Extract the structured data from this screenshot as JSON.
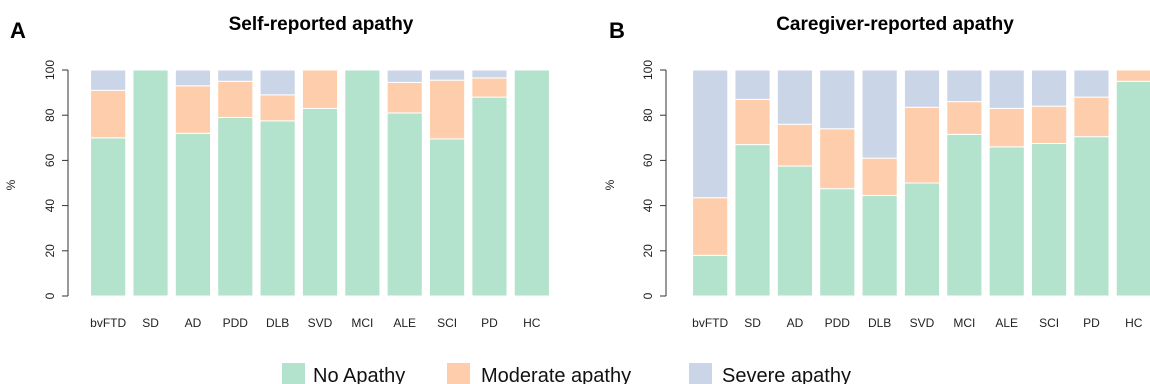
{
  "colors": {
    "no": "#b3e2cd",
    "mod": "#fdcdac",
    "sev": "#cbd5e8"
  },
  "legend": [
    {
      "label": "No Apathy",
      "color": "#b3e2cd"
    },
    {
      "label": "Moderate apathy",
      "color": "#fdcdac"
    },
    {
      "label": "Severe apathy",
      "color": "#cbd5e8"
    }
  ],
  "chart_data": [
    {
      "type": "bar",
      "stacked": true,
      "panel": "A",
      "title": "Self-reported apathy",
      "ylabel": "%",
      "ylim": [
        0,
        100
      ],
      "yticks": [
        0,
        20,
        40,
        60,
        80,
        100
      ],
      "categories": [
        "bvFTD",
        "SD",
        "AD",
        "PDD",
        "DLB",
        "SVD",
        "MCI",
        "ALE",
        "SCI",
        "PD",
        "HC"
      ],
      "series": [
        {
          "name": "No Apathy",
          "values": [
            70,
            100,
            72,
            79,
            77.5,
            83,
            100,
            81,
            69.5,
            88,
            100
          ]
        },
        {
          "name": "Moderate apathy",
          "values": [
            21,
            0,
            21,
            16,
            11.5,
            17,
            0,
            13.5,
            26,
            8.5,
            0
          ]
        },
        {
          "name": "Severe apathy",
          "values": [
            9,
            0,
            7,
            5,
            11,
            0,
            0,
            5.5,
            4.5,
            3.5,
            0
          ]
        }
      ]
    },
    {
      "type": "bar",
      "stacked": true,
      "panel": "B",
      "title": "Caregiver-reported apathy",
      "ylabel": "%",
      "ylim": [
        0,
        100
      ],
      "yticks": [
        0,
        20,
        40,
        60,
        80,
        100
      ],
      "categories": [
        "bvFTD",
        "SD",
        "AD",
        "PDD",
        "DLB",
        "SVD",
        "MCI",
        "ALE",
        "SCI",
        "PD",
        "HC"
      ],
      "series": [
        {
          "name": "No Apathy",
          "values": [
            18,
            67,
            57.5,
            47.5,
            44.5,
            50,
            71.5,
            66,
            67.5,
            70.5,
            95
          ]
        },
        {
          "name": "Moderate apathy",
          "values": [
            25.5,
            20,
            18.5,
            26.5,
            16.5,
            33.5,
            14.5,
            17,
            16.5,
            17.5,
            5
          ]
        },
        {
          "name": "Severe apathy",
          "values": [
            56.5,
            13,
            24,
            26,
            39,
            16.5,
            14,
            17,
            16,
            12,
            0
          ]
        }
      ]
    }
  ]
}
